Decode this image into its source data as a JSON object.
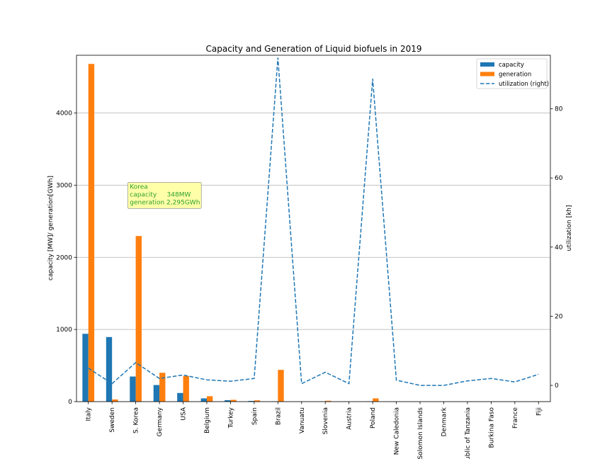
{
  "chart_data": {
    "type": "bar",
    "title": "Capacity and Generation of Liquid biofuels in 2019",
    "xlabel": "",
    "ylabel": "capacity [MW]/ generation[GWh]",
    "ylabel_right": "utilization [kh]",
    "ylim": [
      0,
      4800
    ],
    "ylim_right": [
      -4.7,
      95.5
    ],
    "yticks": [
      0,
      1000,
      2000,
      3000,
      4000
    ],
    "yticks_right": [
      0,
      20,
      40,
      60,
      80
    ],
    "grid": "horizontal (left axis)",
    "legend_placement": "top-right",
    "categories": [
      "Italy",
      "Sweden",
      "S. Korea",
      "Germany",
      "USA",
      "Belgium",
      "Turkey",
      "Spain",
      "Brazil",
      "Vanuatu",
      "Slovenia",
      "Austria",
      "Poland",
      "New Caledonia",
      "Solomon Islands",
      "Denmark",
      "public of Tanzania",
      "Burkina Faso",
      "France",
      "Fiji"
    ],
    "series": [
      {
        "name": "capacity",
        "kind": "bar",
        "axis": "left",
        "color": "#1f77b4",
        "values": [
          940,
          895,
          348,
          230,
          120,
          45,
          20,
          10,
          5,
          1,
          3,
          2,
          5,
          2,
          1,
          1,
          1,
          1,
          1,
          1
        ]
      },
      {
        "name": "generation",
        "kind": "bar",
        "axis": "left",
        "color": "#ff7f0e",
        "values": [
          4680,
          30,
          2295,
          400,
          355,
          75,
          25,
          18,
          440,
          2,
          12,
          2,
          45,
          3,
          0,
          0,
          1,
          2,
          1,
          3
        ]
      },
      {
        "name": "utilization (right)",
        "kind": "line",
        "axis": "right",
        "color": "#1f77b4",
        "style": "dashed",
        "values": [
          5.0,
          0.5,
          6.6,
          2.0,
          3.0,
          1.6,
          1.2,
          2.0,
          94.8,
          0.5,
          3.8,
          0.5,
          88.7,
          1.5,
          0.0,
          0.0,
          1.3,
          2.0,
          1.0,
          3.2
        ]
      }
    ],
    "annotation": {
      "lines": [
        "Korea",
        "capacity     348MW",
        "generation 2,295GWh"
      ],
      "category": "S. Korea",
      "y": 3000,
      "text_color": "#2ca02c",
      "box_color": "#ffffa8"
    }
  }
}
